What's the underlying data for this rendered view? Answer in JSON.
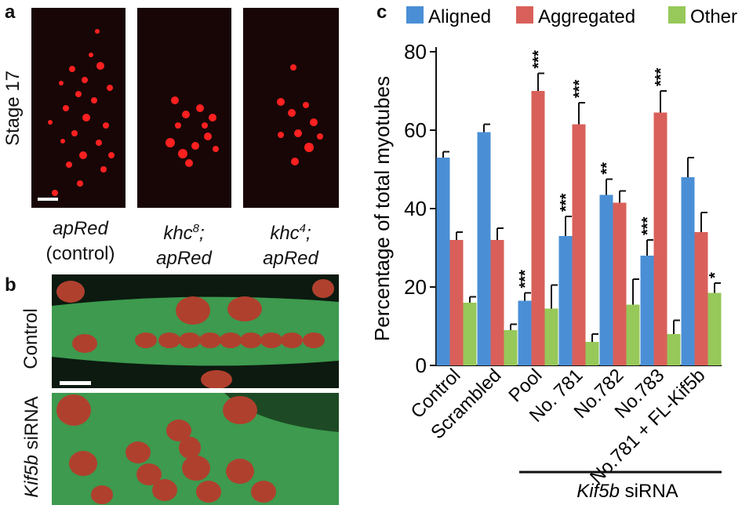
{
  "panel_a": {
    "letter": "a",
    "row_label": "Stage 17",
    "columns": [
      {
        "line1": "apRed",
        "line2": "(control)",
        "line2_italic": false
      },
      {
        "line1": "khc",
        "sup": "8",
        "line1_suffix": ";",
        "line2": "apRed",
        "line2_italic": true
      },
      {
        "line1": "khc",
        "sup": "4",
        "line1_suffix": ";",
        "line2": "apRed",
        "line2_italic": true
      }
    ]
  },
  "panel_b": {
    "letter": "b",
    "row1_label": "Control",
    "row2_label_italic": "Kif5b",
    "row2_label": "siRNA"
  },
  "panel_c": {
    "letter": "c"
  },
  "chart_data": {
    "type": "bar",
    "ylabel": "Percentage of total myotubes",
    "xlabel": "",
    "ylim": [
      0,
      80
    ],
    "yticks": [
      0,
      20,
      40,
      60,
      80
    ],
    "categories": [
      "Control",
      "Scrambled",
      "Pool",
      "No. 781",
      "No.782",
      "No.783",
      "No.781 + FL-Kif5b"
    ],
    "series": [
      {
        "name": "Aligned",
        "color": "#4a8fd6",
        "values": [
          53,
          59.5,
          16.5,
          33,
          43.5,
          28,
          48
        ],
        "errors": [
          1.5,
          2,
          2,
          5,
          4,
          4,
          5
        ],
        "stars": [
          "",
          "",
          "***",
          "***",
          "**",
          "***",
          ""
        ]
      },
      {
        "name": "Aggregated",
        "color": "#d9605a",
        "values": [
          32,
          32,
          70,
          61.5,
          41.5,
          64.5,
          34
        ],
        "errors": [
          2,
          3,
          4.5,
          5.5,
          3,
          5.5,
          5
        ],
        "stars": [
          "",
          "",
          "***",
          "***",
          "",
          "***",
          ""
        ]
      },
      {
        "name": "Other",
        "color": "#96c85a",
        "values": [
          16,
          9,
          14.5,
          6,
          15.5,
          8,
          18.5
        ],
        "errors": [
          1.5,
          1.5,
          6,
          2,
          6.5,
          3.5,
          2.5
        ],
        "stars": [
          "",
          "",
          "",
          "",
          "",
          "",
          "*"
        ]
      }
    ],
    "legend_position": "top",
    "bracket_label_italic": "Kif5b",
    "bracket_label": "siRNA"
  }
}
